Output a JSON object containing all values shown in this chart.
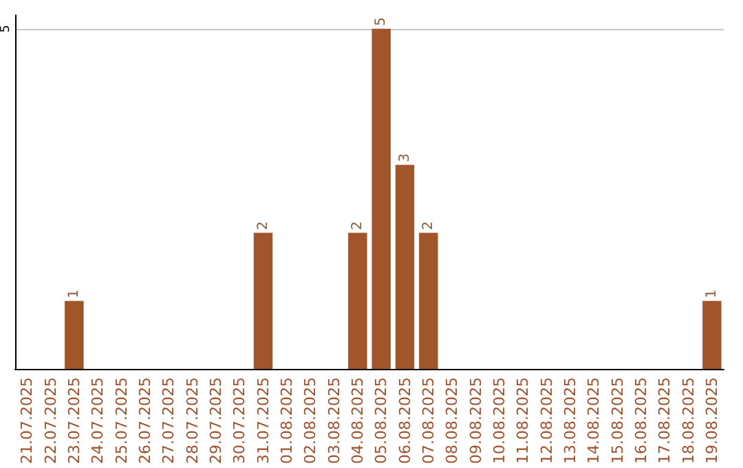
{
  "chart_data": {
    "type": "bar",
    "categories": [
      "21.07.2025",
      "22.07.2025",
      "23.07.2025",
      "24.07.2025",
      "25.07.2025",
      "26.07.2025",
      "27.07.2025",
      "28.07.2025",
      "29.07.2025",
      "30.07.2025",
      "31.07.2025",
      "01.08.2025",
      "02.08.2025",
      "03.08.2025",
      "04.08.2025",
      "05.08.2025",
      "06.08.2025",
      "07.08.2025",
      "08.08.2025",
      "09.08.2025",
      "10.08.2025",
      "11.08.2025",
      "12.08.2025",
      "13.08.2025",
      "14.08.2025",
      "15.08.2025",
      "16.08.2025",
      "17.08.2025",
      "18.08.2025",
      "19.08.2025"
    ],
    "values": [
      0,
      0,
      1,
      0,
      0,
      0,
      0,
      0,
      0,
      0,
      2,
      0,
      0,
      0,
      2,
      5,
      3,
      2,
      0,
      0,
      0,
      0,
      0,
      0,
      0,
      0,
      0,
      0,
      0,
      1
    ],
    "value_labels": [
      null,
      null,
      "1",
      null,
      null,
      null,
      null,
      null,
      null,
      null,
      "2",
      null,
      null,
      null,
      "2",
      "5",
      "3",
      "2",
      null,
      null,
      null,
      null,
      null,
      null,
      null,
      null,
      null,
      null,
      null,
      "1"
    ],
    "color": "#a0562a",
    "ylim": [
      0,
      5.2
    ],
    "yticks": [
      5
    ],
    "grid": "y"
  }
}
